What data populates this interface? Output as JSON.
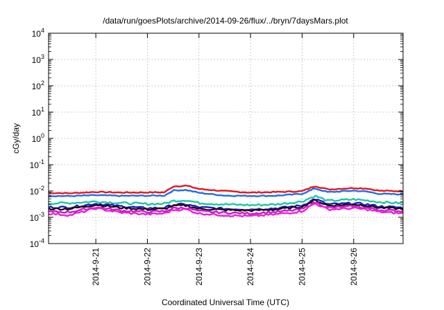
{
  "chart_data": {
    "type": "line",
    "title": "/data/run/goesPlots/archive/2014-09-26/flux/../bryn/7daysMars.plot",
    "xlabel": "Coordinated Universal Time (UTC)",
    "ylabel": "cGy/day",
    "yscale": "log",
    "ylim": [
      0.0001,
      10000
    ],
    "yticks": [
      {
        "value": 0.0001,
        "base": "10",
        "exp": "-4"
      },
      {
        "value": 0.001,
        "base": "10",
        "exp": "-3"
      },
      {
        "value": 0.01,
        "base": "10",
        "exp": "-2"
      },
      {
        "value": 0.1,
        "base": "10",
        "exp": "-1"
      },
      {
        "value": 1,
        "base": "10",
        "exp": "0"
      },
      {
        "value": 10,
        "base": "10",
        "exp": "1"
      },
      {
        "value": 100,
        "base": "10",
        "exp": "2"
      },
      {
        "value": 1000,
        "base": "10",
        "exp": "3"
      },
      {
        "value": 10000,
        "base": "10",
        "exp": "4"
      }
    ],
    "xlim": [
      "2014-09-20 02:00",
      "2014-09-26 23:00"
    ],
    "xticks": [
      "2014-9-21",
      "2014-9-22",
      "2014-9-23",
      "2014-9-24",
      "2014-9-25",
      "2014-9-26"
    ],
    "grid": true,
    "x": [
      "2014-09-20 02:00",
      "2014-09-20 12:00",
      "2014-09-21 00:00",
      "2014-09-21 12:00",
      "2014-09-22 00:00",
      "2014-09-22 08:00",
      "2014-09-22 12:00",
      "2014-09-22 18:00",
      "2014-09-23 00:00",
      "2014-09-23 12:00",
      "2014-09-24 00:00",
      "2014-09-24 12:00",
      "2014-09-25 00:00",
      "2014-09-25 06:00",
      "2014-09-25 12:00",
      "2014-09-26 00:00",
      "2014-09-26 06:00",
      "2014-09-26 12:00",
      "2014-09-26 23:00"
    ],
    "series": [
      {
        "color": "#e8141c",
        "values": [
          0.0085,
          0.0082,
          0.0092,
          0.0087,
          0.0088,
          0.0089,
          0.015,
          0.016,
          0.012,
          0.0099,
          0.0087,
          0.0091,
          0.0098,
          0.0155,
          0.0115,
          0.013,
          0.0125,
          0.0102,
          0.0098
        ]
      },
      {
        "color": "#1a6ee8",
        "values": [
          0.0065,
          0.0064,
          0.0069,
          0.0065,
          0.0066,
          0.0067,
          0.0105,
          0.011,
          0.0085,
          0.0067,
          0.0065,
          0.0066,
          0.0078,
          0.0125,
          0.009,
          0.0103,
          0.0095,
          0.0078,
          0.0074
        ]
      },
      {
        "color": "#18c8a0",
        "values": [
          0.0034,
          0.0035,
          0.004,
          0.0035,
          0.0032,
          0.0033,
          0.0042,
          0.0045,
          0.0035,
          0.0031,
          0.0029,
          0.0031,
          0.004,
          0.0065,
          0.0042,
          0.0048,
          0.0044,
          0.0038,
          0.0034
        ]
      },
      {
        "color": "#1a1cc0",
        "values": [
          0.0024,
          0.0024,
          0.0033,
          0.0026,
          0.0022,
          0.0023,
          0.003,
          0.0031,
          0.0024,
          0.0021,
          0.002,
          0.0022,
          0.0028,
          0.005,
          0.0031,
          0.0034,
          0.0031,
          0.0026,
          0.0023
        ]
      },
      {
        "color": "#200818",
        "values": [
          0.0021,
          0.0021,
          0.003,
          0.0023,
          0.002,
          0.0021,
          0.0027,
          0.0028,
          0.0021,
          0.0019,
          0.0018,
          0.002,
          0.0025,
          0.0045,
          0.0028,
          0.0031,
          0.0028,
          0.0023,
          0.0021
        ]
      },
      {
        "color": "#c818c8",
        "values": [
          0.0016,
          0.0016,
          0.0024,
          0.0018,
          0.0016,
          0.0017,
          0.0022,
          0.0023,
          0.0017,
          0.0015,
          0.0014,
          0.0016,
          0.002,
          0.0038,
          0.0023,
          0.0026,
          0.0023,
          0.0019,
          0.0017
        ]
      },
      {
        "color": "#f01cd8",
        "values": [
          0.0014,
          0.0012,
          0.0022,
          0.0015,
          0.0013,
          0.0014,
          0.0019,
          0.002,
          0.0014,
          0.0012,
          0.0011,
          0.0013,
          0.0017,
          0.0034,
          0.002,
          0.0022,
          0.002,
          0.0016,
          0.0014
        ]
      }
    ]
  }
}
